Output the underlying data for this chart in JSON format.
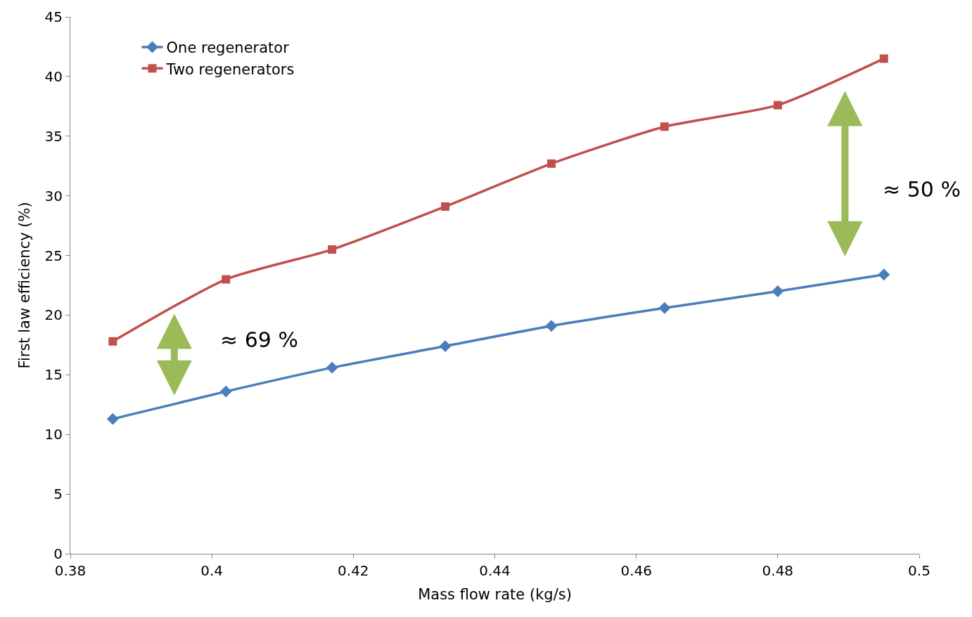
{
  "chart_data": {
    "type": "line",
    "xlabel": "Mass flow rate (kg/s)",
    "ylabel": "First law efficiency (%)",
    "x": [
      0.386,
      0.402,
      0.417,
      0.433,
      0.448,
      0.464,
      0.48,
      0.495
    ],
    "series": [
      {
        "name": "One regenerator",
        "color": "#4a7ebb",
        "marker": "diamond",
        "values": [
          11.3,
          13.6,
          15.6,
          17.4,
          19.1,
          20.6,
          22.0,
          23.4
        ]
      },
      {
        "name": "Two regenerators",
        "color": "#c0504d",
        "marker": "square",
        "values": [
          17.8,
          23.0,
          25.5,
          29.1,
          32.7,
          35.8,
          37.6,
          41.5
        ]
      }
    ],
    "xlim": [
      0.38,
      0.5
    ],
    "xticks": [
      0.38,
      0.4,
      0.42,
      0.44,
      0.46,
      0.48,
      0.5
    ],
    "ylim": [
      0,
      45
    ],
    "yticks": [
      0,
      5,
      10,
      15,
      20,
      25,
      30,
      35,
      40,
      45
    ],
    "legend": "top left",
    "line_style": "solid",
    "annotations": [
      "≈ 69 %",
      "≈ 50 %"
    ]
  }
}
